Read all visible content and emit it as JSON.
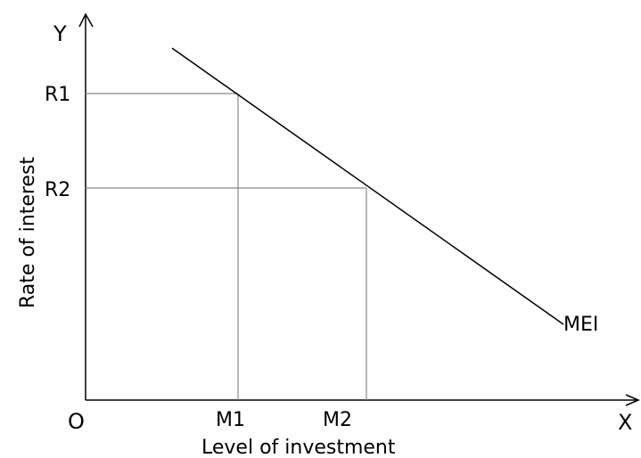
{
  "axes": {
    "x_axis_letter": "X",
    "y_axis_letter": "Y",
    "origin_label": "O",
    "x_axis_title": "Level of investment",
    "y_axis_title": "Rate of interest"
  },
  "ticks": {
    "y": [
      "R1",
      "R2"
    ],
    "x": [
      "M1",
      "M2"
    ]
  },
  "curve": {
    "label": "MEI"
  },
  "colors": {
    "axis": "#000000",
    "guides": "#888888",
    "curve": "#000000",
    "background": "#ffffff"
  }
}
